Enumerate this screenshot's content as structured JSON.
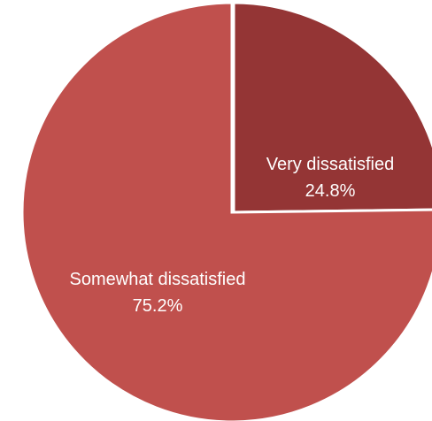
{
  "chart_data": {
    "type": "pie",
    "slices": [
      {
        "label": "Very dissatisfied",
        "value": 24.8,
        "value_label": "24.8%",
        "color": "#943535"
      },
      {
        "label": "Somewhat dissatisfied",
        "value": 75.2,
        "value_label": "75.2%",
        "color": "#c0504d"
      }
    ],
    "start": "12 o'clock",
    "direction": "clockwise",
    "legend": "none",
    "separator_color": "#ffffff"
  }
}
